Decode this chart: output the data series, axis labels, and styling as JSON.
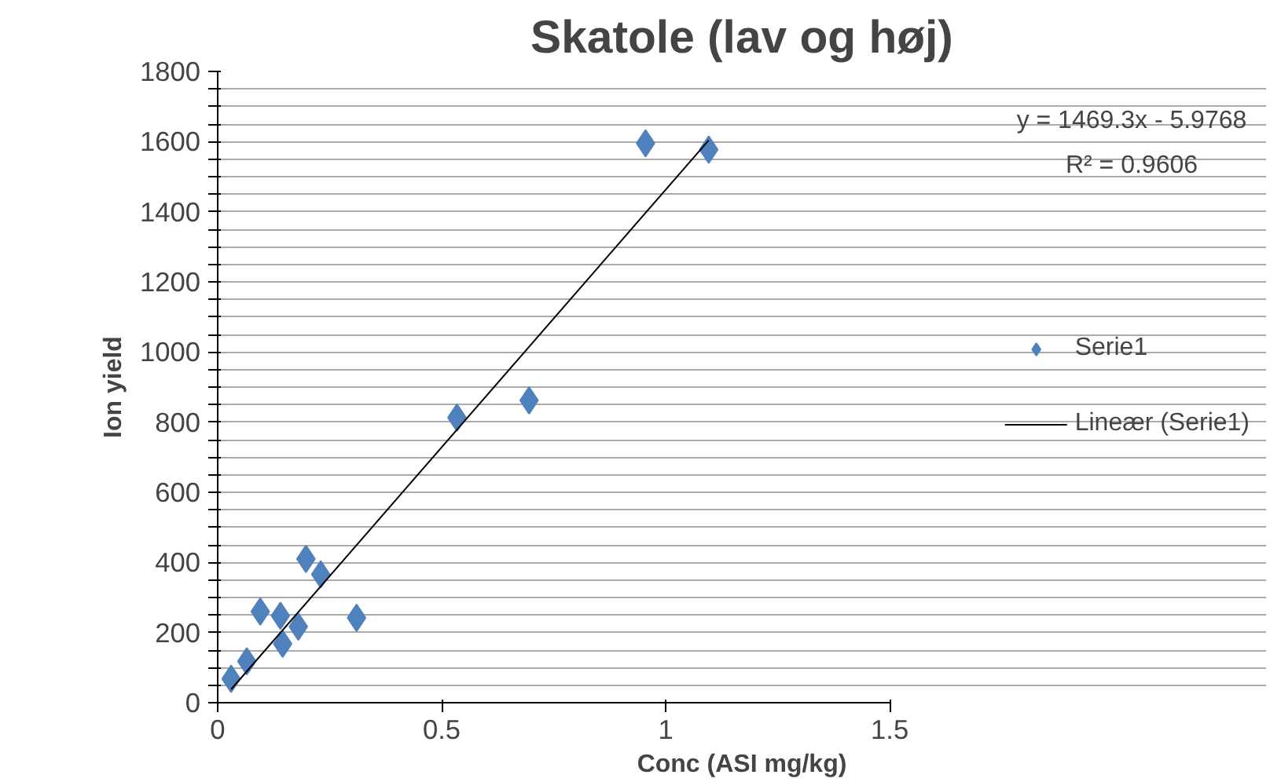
{
  "chart_data": {
    "type": "scatter",
    "title": "Skatole (lav og høj)",
    "xlabel": "Conc (ASI mg/kg)",
    "ylabel": "Ion yield",
    "series": [
      {
        "name": "Serie1",
        "color": "#4f81bd",
        "marker": "diamond",
        "x": [
          0.03,
          0.065,
          0.095,
          0.14,
          0.145,
          0.18,
          0.197,
          0.23,
          0.31,
          0.534,
          0.695,
          0.955,
          1.096
        ],
        "values": [
          68,
          118,
          260,
          248,
          168,
          217,
          410,
          366,
          242,
          813,
          862,
          1595,
          1577
        ]
      },
      {
        "name": "Lineær (Serie1)",
        "type": "line",
        "color": "#000000",
        "line_style": "solid",
        "x": [
          0.03,
          1.096
        ],
        "values": [
          38,
          1604
        ]
      }
    ],
    "xlim": [
      0,
      1.5
    ],
    "xticks": [
      0,
      0.5,
      1,
      1.5
    ],
    "ylim": [
      0,
      1800
    ],
    "yticks": [
      0,
      {
        "value": 50,
        "label": null
      },
      {
        "value": 100,
        "label": null
      },
      {
        "value": 150,
        "label": null
      },
      200,
      {
        "value": 250,
        "label": null
      },
      {
        "value": 300,
        "label": null
      },
      {
        "value": 350,
        "label": null
      },
      400,
      {
        "value": 450,
        "label": null
      },
      {
        "value": 500,
        "label": null
      },
      {
        "value": 550,
        "label": null
      },
      600,
      {
        "value": 650,
        "label": null
      },
      {
        "value": 700,
        "label": null
      },
      {
        "value": 750,
        "label": null
      },
      800,
      {
        "value": 850,
        "label": null
      },
      {
        "value": 900,
        "label": null
      },
      {
        "value": 950,
        "label": null
      },
      1000,
      {
        "value": 1050,
        "label": null
      },
      {
        "value": 1100,
        "label": null
      },
      {
        "value": 1150,
        "label": null
      },
      1200,
      {
        "value": 1250,
        "label": null
      },
      {
        "value": 1300,
        "label": null
      },
      {
        "value": 1350,
        "label": null
      },
      1400,
      {
        "value": 1450,
        "label": null
      },
      {
        "value": 1500,
        "label": null
      },
      {
        "value": 1550,
        "label": null
      },
      1600,
      {
        "value": 1650,
        "label": null
      },
      {
        "value": 1700,
        "label": null
      },
      {
        "value": 1750,
        "label": null
      },
      1800
    ],
    "grid": "y",
    "legend": "right",
    "annotations": [
      "y = 1469.3x - 5.9768",
      "R² = 0.9606"
    ]
  }
}
